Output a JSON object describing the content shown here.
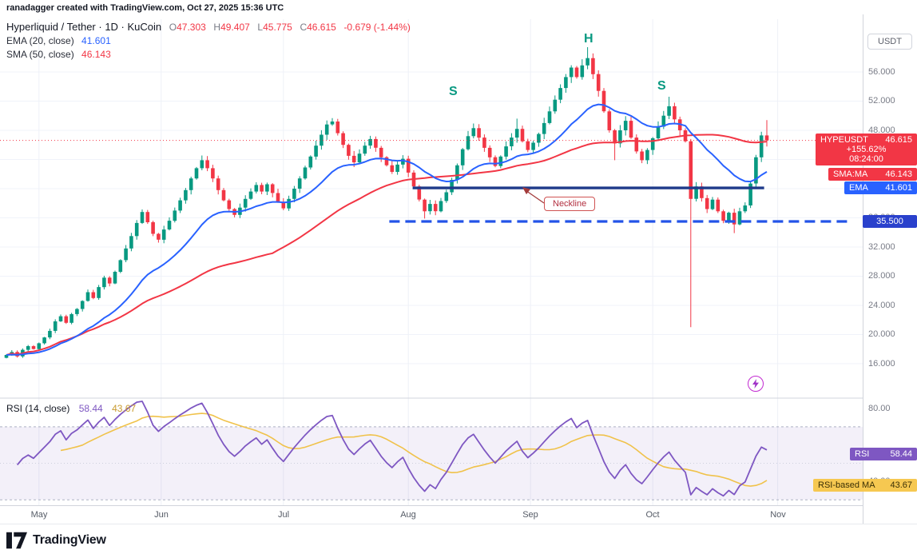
{
  "header": {
    "credit": "ranadagger created with TradingView.com, Oct 27, 2025 15:36 UTC"
  },
  "symbol_line": {
    "title": "Hyperliquid / Tether · 1D · KuCoin",
    "o_label": "O",
    "o": "47.303",
    "h_label": "H",
    "h": "49.407",
    "l_label": "L",
    "l": "45.775",
    "c_label": "C",
    "c": "46.615",
    "change": "-0.679 (-1.44%)"
  },
  "indicators": {
    "ema": {
      "label": "EMA (20, close)",
      "value": "41.601"
    },
    "sma": {
      "label": "SMA (50, close)",
      "value": "46.143"
    }
  },
  "axis": {
    "currency": "USDT",
    "months": [
      "May",
      "Jun",
      "Jul",
      "Aug",
      "Sep",
      "Oct",
      "Nov"
    ]
  },
  "badges": {
    "last_price": {
      "symbol": "HYPEUSDT",
      "price": "46.615",
      "change_pct": "+155.62%",
      "countdown": "08:24:00",
      "color": "#f23645"
    },
    "sma_badge": {
      "label": "SMA:MA",
      "value": "46.143",
      "color": "#f23645"
    },
    "ema_badge": {
      "label": "EMA",
      "value": "41.601",
      "color": "#2962ff"
    },
    "support_badge": {
      "value": "35.500",
      "color": "#2a41cc"
    },
    "rsi_badge": {
      "label": "RSI",
      "value": "58.44",
      "color": "#7e57c2"
    },
    "rsi_ma_badge": {
      "label": "RSI-based MA",
      "value": "43.67",
      "color": "#f6c851",
      "text_color": "#3a2f05"
    }
  },
  "annotations": {
    "s_left": "S",
    "head": "H",
    "s_right": "S",
    "neckline_label": "Neckline",
    "pattern_color": "#089981"
  },
  "rsi_pane": {
    "title": "RSI (14, close)",
    "value": "58.44",
    "ma_value": "43.67"
  },
  "footer": {
    "brand": "TradingView"
  },
  "chart_data": {
    "type": "candlestick",
    "symbol": "HYPEUSDT",
    "timeframe": "1D",
    "title": "Hyperliquid / Tether 1D KuCoin",
    "last_ohlc": {
      "open": 47.303,
      "high": 49.407,
      "low": 45.775,
      "close": 46.615,
      "change": -0.679,
      "change_pct": -1.44
    },
    "current_price": 46.615,
    "price_ylim": [
      11.5,
      61.7
    ],
    "price_grid": [
      16,
      20,
      24,
      28,
      32,
      36,
      40,
      44,
      48,
      52,
      56
    ],
    "x0": 8,
    "dx": 6.8,
    "month_indices": [
      6,
      28.5,
      51,
      74,
      96.5,
      119,
      142
    ],
    "first_open": 16.8,
    "closes": [
      17.2,
      17.6,
      17.0,
      17.9,
      18.4,
      18.0,
      18.8,
      19.6,
      20.5,
      21.8,
      22.5,
      21.6,
      22.8,
      23.5,
      24.6,
      25.8,
      25.0,
      26.5,
      27.8,
      27.0,
      28.6,
      30.2,
      31.8,
      33.5,
      35.3,
      36.8,
      35.4,
      33.8,
      33.0,
      34.4,
      35.6,
      37.0,
      38.4,
      39.8,
      41.4,
      42.8,
      43.9,
      42.8,
      41.4,
      39.8,
      38.4,
      37.2,
      36.4,
      37.4,
      38.6,
      39.6,
      40.5,
      39.6,
      40.6,
      39.4,
      38.2,
      37.3,
      38.6,
      40.0,
      41.4,
      42.9,
      44.4,
      45.9,
      47.4,
      48.8,
      49.2,
      47.6,
      46.0,
      44.5,
      43.6,
      44.8,
      45.9,
      46.8,
      45.6,
      44.3,
      43.2,
      42.3,
      43.3,
      44.1,
      42.2,
      40.3,
      38.5,
      36.9,
      37.9,
      36.9,
      38.3,
      39.5,
      41.2,
      43.2,
      45.4,
      47.2,
      48.3,
      47.0,
      45.6,
      44.3,
      43.1,
      44.4,
      45.8,
      47.0,
      48.2,
      46.5,
      45.3,
      46.3,
      47.5,
      49.0,
      50.6,
      52.2,
      53.8,
      55.3,
      56.6,
      55.3,
      56.9,
      57.9,
      55.7,
      53.4,
      50.6,
      48.0,
      46.2,
      48.0,
      49.3,
      47.0,
      45.1,
      43.9,
      45.3,
      46.9,
      48.5,
      50.0,
      51.3,
      49.5,
      48.0,
      46.5,
      38.6,
      40.3,
      38.7,
      37.2,
      38.5,
      36.9,
      35.6,
      36.7,
      35.1,
      36.9,
      37.7,
      40.7,
      44.3,
      47.3,
      46.615
    ],
    "wick_overrides": {
      "77": {
        "low": 35.9
      },
      "94": {
        "high": 49.6
      },
      "107": {
        "high": 59.4
      },
      "112": {
        "low": 43.9
      },
      "122": {
        "high": 52.6
      },
      "126": {
        "low": 21.0,
        "high": 46.8
      },
      "134": {
        "low": 33.9
      },
      "139": {
        "high": 47.8
      },
      "140": {
        "open": 47.303,
        "high": 49.407,
        "low": 45.775,
        "close": 46.615
      }
    },
    "ema": {
      "period": 20,
      "last": 41.601,
      "color": "#2962ff"
    },
    "sma": {
      "period": 50,
      "last": 46.143,
      "color": "#f23645"
    },
    "support_line": {
      "price": 35.5,
      "i_start": 70.5,
      "i_end": 155,
      "color": "#2353e8"
    },
    "neckline": {
      "price": 40.1,
      "i_start": 74.8,
      "i_end": 139.5,
      "color": "#1e3a8a"
    },
    "colors": {
      "up": "#089981",
      "down": "#f23645",
      "current_line": "#f23645"
    },
    "rsi": {
      "period": 14,
      "ma_period": 14,
      "last": 58.44,
      "ma_last": 43.67,
      "ylim": [
        27,
        84
      ],
      "band": [
        30,
        70
      ],
      "mid": 50,
      "ticks": [
        80,
        40
      ],
      "color": "#7e57c2",
      "ma_color": "#f0c24a",
      "band_fill": "rgba(126,87,194,0.09)"
    }
  }
}
